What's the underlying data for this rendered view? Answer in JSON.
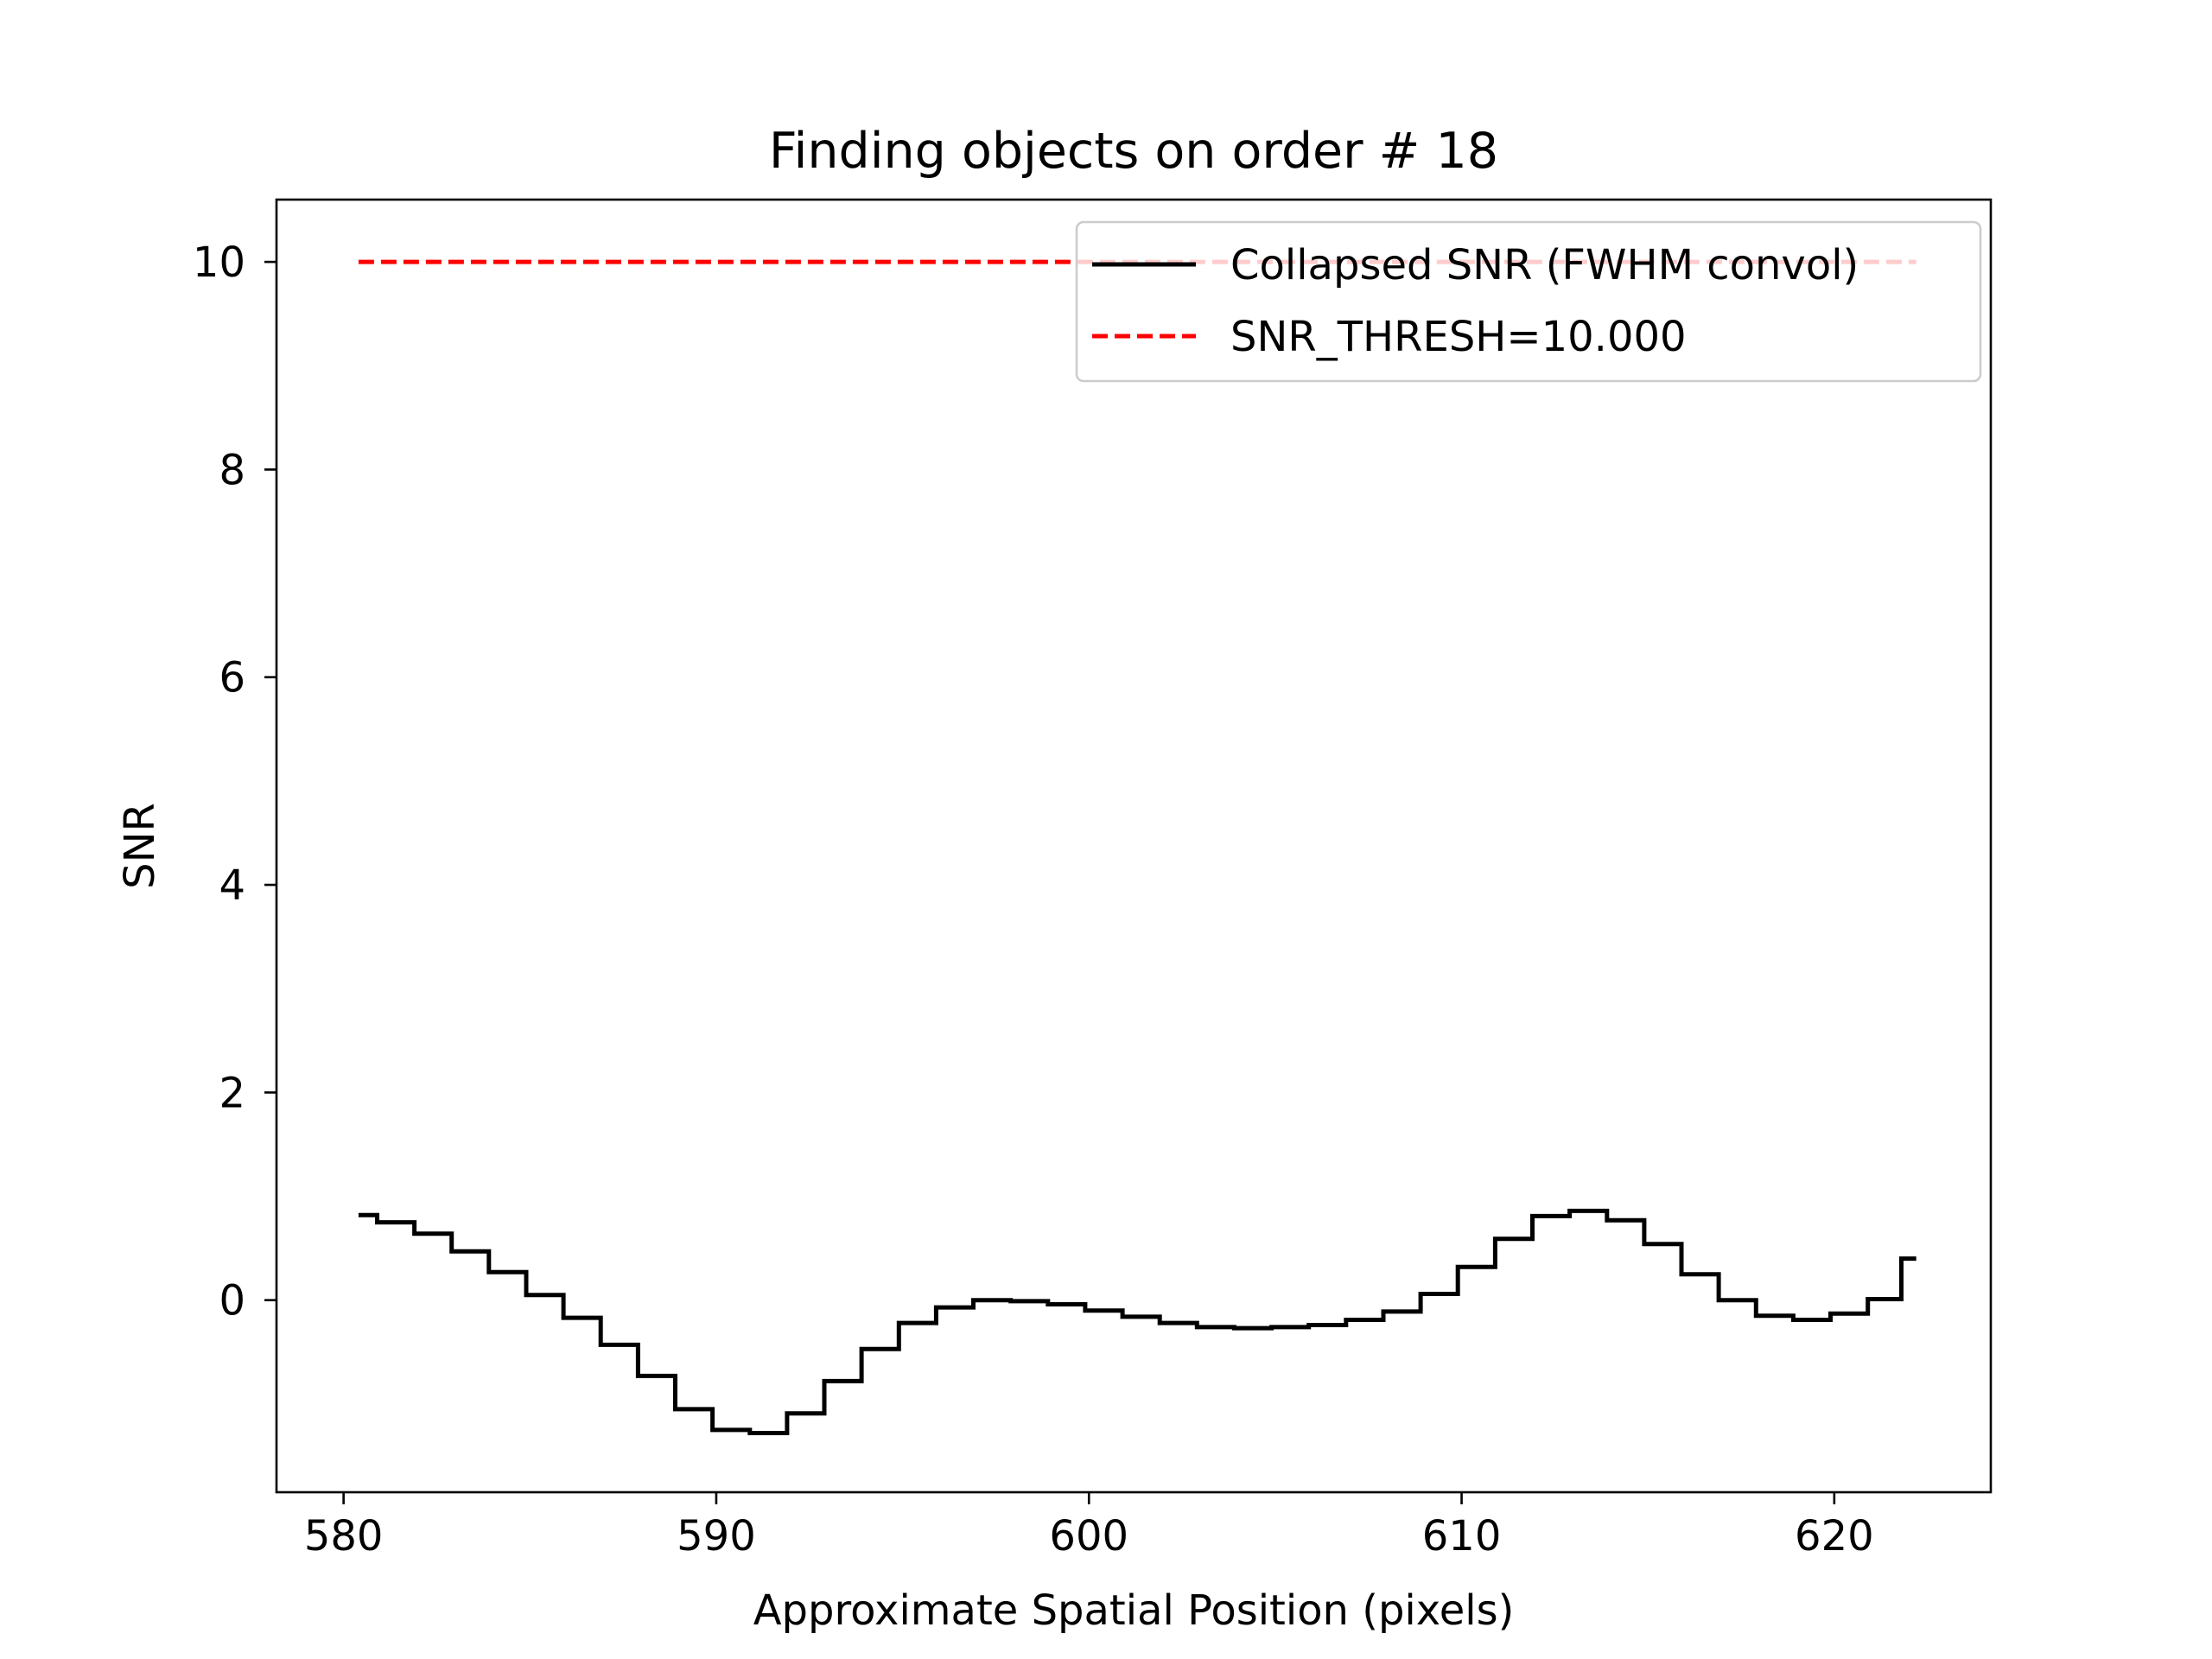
{
  "chart_data": {
    "type": "line",
    "title": "Finding objects on order # 18",
    "xlabel": "Approximate Spatial Position (pixels)",
    "ylabel": "SNR",
    "xlim": [
      578.2,
      624.2
    ],
    "ylim": [
      -1.85,
      10.6
    ],
    "xticks": [
      580,
      590,
      600,
      610,
      620
    ],
    "yticks": [
      0,
      2,
      4,
      6,
      8,
      10
    ],
    "grid": false,
    "legend_position": "top-right",
    "series": [
      {
        "name": "Collapsed SNR (FWHM convol)",
        "style": "steps-mid",
        "color": "#000000",
        "x": [
          580.4,
          581.4,
          582.4,
          583.4,
          584.4,
          585.4,
          586.4,
          587.4,
          588.4,
          589.4,
          590.4,
          591.4,
          592.4,
          593.4,
          594.4,
          595.4,
          596.4,
          597.4,
          598.4,
          599.4,
          600.4,
          601.4,
          602.4,
          603.4,
          604.4,
          605.4,
          606.4,
          607.4,
          608.4,
          609.4,
          610.4,
          611.4,
          612.4,
          613.4,
          614.4,
          615.4,
          616.4,
          617.4,
          618.4,
          619.4,
          620.4,
          621.4,
          622.2
        ],
        "y": [
          0.82,
          0.75,
          0.64,
          0.47,
          0.27,
          0.05,
          -0.17,
          -0.43,
          -0.73,
          -1.05,
          -1.25,
          -1.28,
          -1.09,
          -0.78,
          -0.47,
          -0.22,
          -0.07,
          0.0,
          -0.01,
          -0.04,
          -0.1,
          -0.16,
          -0.22,
          -0.26,
          -0.27,
          -0.26,
          -0.24,
          -0.19,
          -0.11,
          0.06,
          0.32,
          0.59,
          0.81,
          0.86,
          0.77,
          0.54,
          0.25,
          0.0,
          -0.15,
          -0.19,
          -0.13,
          0.01,
          0.4
        ]
      },
      {
        "name": "SNR_THRESH=10.000",
        "style": "dashed",
        "color": "#ff0000",
        "x": [
          580.4,
          622.2
        ],
        "y": [
          10.0,
          10.0
        ]
      }
    ]
  }
}
